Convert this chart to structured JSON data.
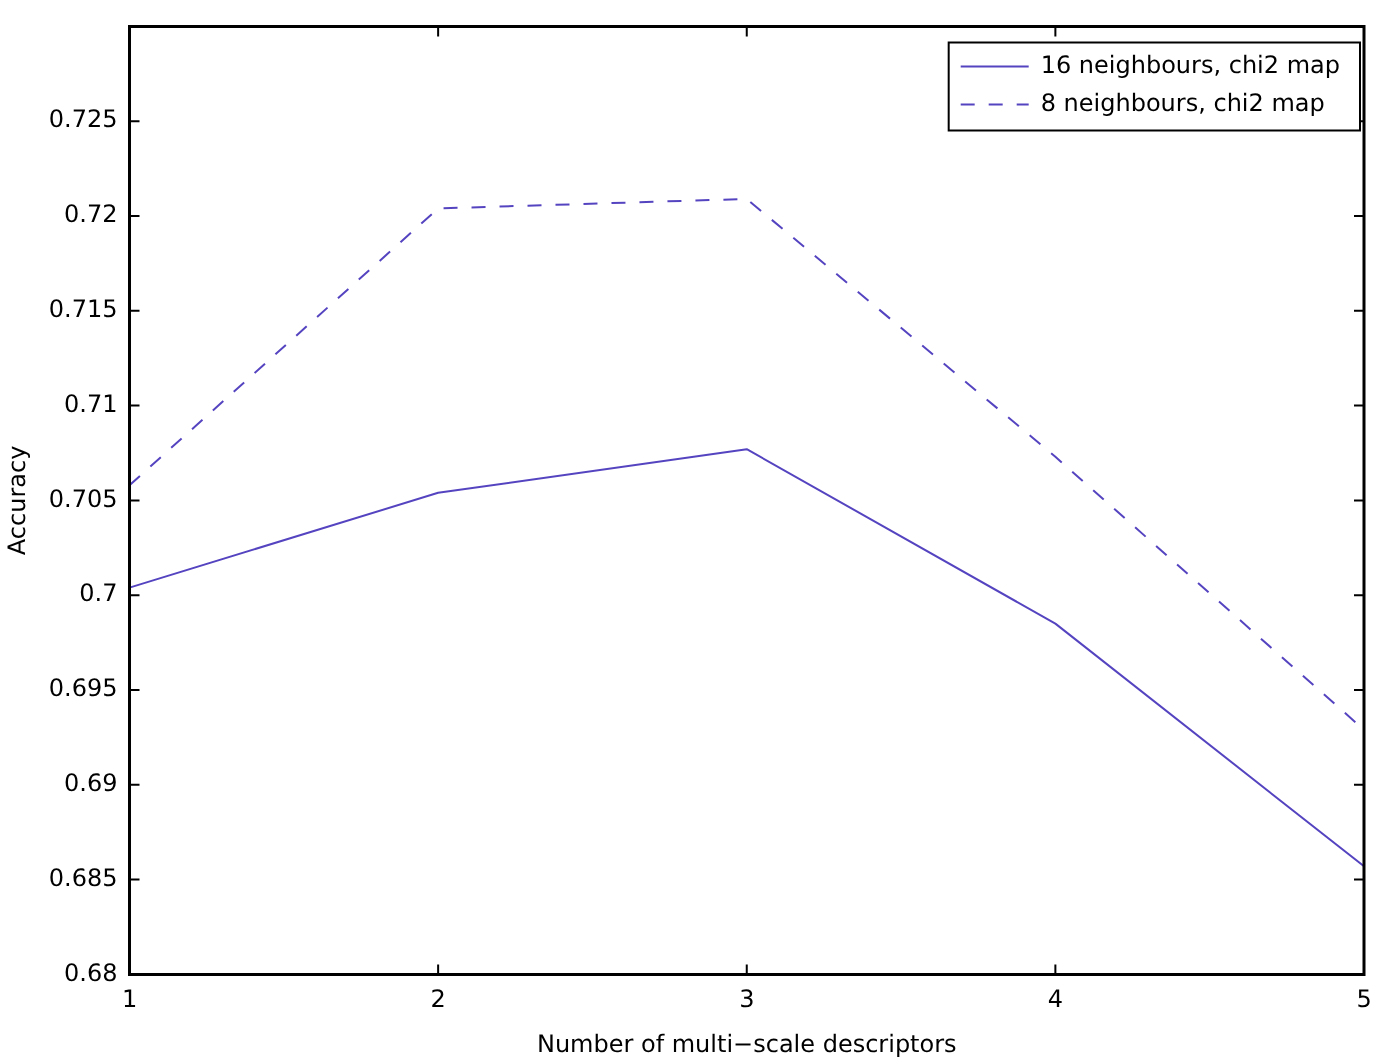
{
  "chart_data": {
    "type": "line",
    "xlabel": "Number of multi−scale descriptors",
    "ylabel": "Accuracy",
    "x": [
      1,
      2,
      3,
      4,
      5
    ],
    "series": [
      {
        "name": "16 neighbours, chi2 map",
        "color": "#5544c0",
        "line_style": "solid",
        "values": [
          0.7004,
          0.7054,
          0.7077,
          0.6985,
          0.6857
        ]
      },
      {
        "name": "8 neighbours, chi2 map",
        "color": "#5544c0",
        "line_style": "dashed",
        "values": [
          0.7058,
          0.7204,
          0.7209,
          0.7073,
          0.6929
        ]
      }
    ],
    "xlim": [
      1,
      5
    ],
    "xticks": [
      1,
      2,
      3,
      4,
      5
    ],
    "ylim": [
      0.68,
      0.73
    ],
    "yticks": [
      0.68,
      0.685,
      0.69,
      0.695,
      0.7,
      0.705,
      0.71,
      0.715,
      0.72,
      0.725,
      {
        "value": 0.73,
        "label": null
      }
    ],
    "grid": false,
    "legend": "top right",
    "marker": "none"
  }
}
